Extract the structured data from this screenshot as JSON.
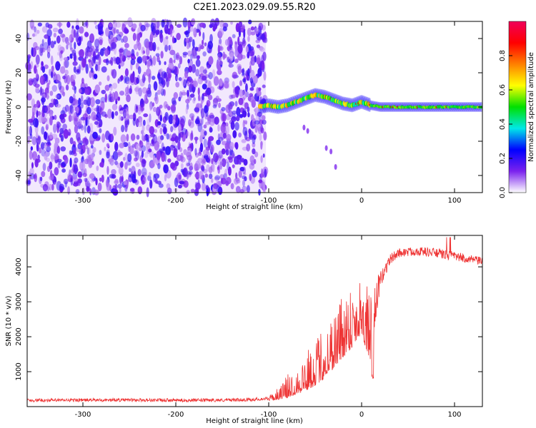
{
  "title": "C2E1.2023.029.09.55.R20",
  "chart_data": [
    {
      "type": "heatmap",
      "xlabel": "Height of straight line (km)",
      "ylabel": "Frequency (Hz)",
      "xlim": [
        -360,
        130
      ],
      "ylim": [
        -50,
        50
      ],
      "xticks": [
        -300,
        -200,
        -100,
        0,
        100
      ],
      "yticks": [
        -40,
        -20,
        0,
        20,
        40
      ],
      "noise_region": {
        "x": [
          -360,
          -103
        ],
        "y": [
          -50,
          50
        ]
      },
      "signal_track": {
        "x": [
          -110,
          -100,
          -90,
          -80,
          -70,
          -60,
          -50,
          -40,
          -30,
          -20,
          -10,
          0,
          10,
          20,
          40,
          60,
          80,
          100,
          130
        ],
        "y": [
          0,
          1,
          0,
          1,
          3,
          5,
          7,
          6,
          4,
          2,
          1,
          3,
          1,
          0,
          0,
          0,
          0,
          0,
          0
        ]
      },
      "colorbar": {
        "label": "Normalized spectral amplitude",
        "range": [
          0.0,
          1.0
        ],
        "ticks": [
          0.0,
          0.2,
          0.4,
          0.6,
          0.8
        ],
        "colors": [
          "#ffffff",
          "#7b22ee",
          "#0000ff",
          "#00e8e8",
          "#00e000",
          "#ffff00",
          "#ff8000",
          "#ff0000",
          "#f0005a"
        ]
      }
    },
    {
      "type": "line",
      "xlabel": "Height of straight line (km)",
      "ylabel": "SNR (10 * v/v)",
      "xlim": [
        -360,
        130
      ],
      "ylim": [
        0,
        4900
      ],
      "xticks": [
        -300,
        -200,
        -100,
        0,
        100
      ],
      "yticks": [
        1000,
        2000,
        3000,
        4000
      ],
      "color": "#ee3333",
      "series": [
        {
          "x": [
            -360,
            -300,
            -250,
            -200,
            -150,
            -120,
            -100,
            -90,
            -80,
            -70,
            -60,
            -50,
            -40,
            -30,
            -20,
            -10,
            0,
            5,
            10,
            15,
            20,
            30,
            40,
            60,
            80,
            100,
            120,
            130
          ],
          "y": [
            180,
            185,
            190,
            180,
            185,
            200,
            230,
            350,
            550,
            750,
            950,
            1200,
            1500,
            1900,
            2300,
            2600,
            2900,
            2500,
            2200,
            3000,
            3600,
            4200,
            4400,
            4450,
            4400,
            4300,
            4200,
            4150
          ],
          "noise": [
            60,
            60,
            60,
            60,
            60,
            60,
            60,
            150,
            300,
            400,
            500,
            600,
            700,
            800,
            900,
            900,
            800,
            900,
            900,
            500,
            300,
            200,
            160,
            160,
            170,
            170,
            150,
            150
          ]
        }
      ]
    }
  ]
}
